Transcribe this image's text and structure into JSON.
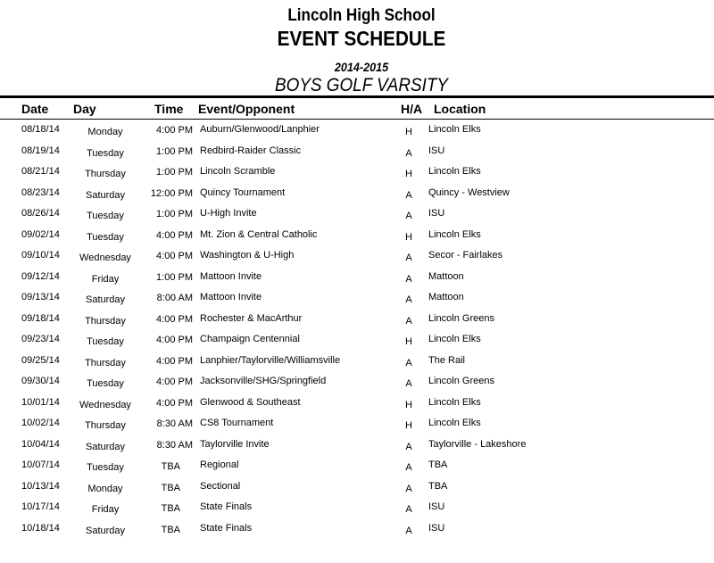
{
  "header": {
    "school": "Lincoln High School",
    "title": "EVENT SCHEDULE",
    "season": "2014-2015",
    "team": "BOYS GOLF VARSITY"
  },
  "columns": {
    "date": "Date",
    "day": "Day",
    "time": "Time",
    "event": "Event/Opponent",
    "ha": "H/A",
    "location": "Location"
  },
  "rows": [
    {
      "date": "08/18/14",
      "day": "Monday",
      "time": "4:00 PM",
      "event": "Auburn/Glenwood/Lanphier",
      "ha": "H",
      "location": "Lincoln Elks"
    },
    {
      "date": "08/19/14",
      "day": "Tuesday",
      "time": "1:00 PM",
      "event": "Redbird-Raider Classic",
      "ha": "A",
      "location": "ISU"
    },
    {
      "date": "08/21/14",
      "day": "Thursday",
      "time": "1:00 PM",
      "event": "Lincoln Scramble",
      "ha": "H",
      "location": "Lincoln Elks"
    },
    {
      "date": "08/23/14",
      "day": "Saturday",
      "time": "12:00 PM",
      "event": "Quincy Tournament",
      "ha": "A",
      "location": "Quincy - Westview"
    },
    {
      "date": "08/26/14",
      "day": "Tuesday",
      "time": "1:00 PM",
      "event": "U-High Invite",
      "ha": "A",
      "location": "ISU"
    },
    {
      "date": "09/02/14",
      "day": "Tuesday",
      "time": "4:00 PM",
      "event": "Mt. Zion & Central Catholic",
      "ha": "H",
      "location": "Lincoln Elks"
    },
    {
      "date": "09/10/14",
      "day": "Wednesday",
      "time": "4:00 PM",
      "event": "Washington & U-High",
      "ha": "A",
      "location": "Secor - Fairlakes"
    },
    {
      "date": "09/12/14",
      "day": "Friday",
      "time": "1:00 PM",
      "event": "Mattoon Invite",
      "ha": "A",
      "location": "Mattoon"
    },
    {
      "date": "09/13/14",
      "day": "Saturday",
      "time": "8:00 AM",
      "event": "Mattoon Invite",
      "ha": "A",
      "location": "Mattoon"
    },
    {
      "date": "09/18/14",
      "day": "Thursday",
      "time": "4:00 PM",
      "event": "Rochester & MacArthur",
      "ha": "A",
      "location": "Lincoln Greens"
    },
    {
      "date": "09/23/14",
      "day": "Tuesday",
      "time": "4:00 PM",
      "event": "Champaign Centennial",
      "ha": "H",
      "location": "Lincoln Elks"
    },
    {
      "date": "09/25/14",
      "day": "Thursday",
      "time": "4:00 PM",
      "event": "Lanphier/Taylorville/Williamsville",
      "ha": "A",
      "location": "The Rail"
    },
    {
      "date": "09/30/14",
      "day": "Tuesday",
      "time": "4:00 PM",
      "event": "Jacksonville/SHG/Springfield",
      "ha": "A",
      "location": "Lincoln Greens"
    },
    {
      "date": "10/01/14",
      "day": "Wednesday",
      "time": "4:00 PM",
      "event": "Glenwood & Southeast",
      "ha": "H",
      "location": "Lincoln Elks"
    },
    {
      "date": "10/02/14",
      "day": "Thursday",
      "time": "8:30 AM",
      "event": "CS8 Tournament",
      "ha": "H",
      "location": "Lincoln Elks"
    },
    {
      "date": "10/04/14",
      "day": "Saturday",
      "time": "8:30 AM",
      "event": "Taylorville Invite",
      "ha": "A",
      "location": "Taylorville - Lakeshore"
    },
    {
      "date": "10/07/14",
      "day": "Tuesday",
      "time": "TBA",
      "event": "Regional",
      "ha": "A",
      "location": "TBA"
    },
    {
      "date": "10/13/14",
      "day": "Monday",
      "time": "TBA",
      "event": "Sectional",
      "ha": "A",
      "location": "TBA"
    },
    {
      "date": "10/17/14",
      "day": "Friday",
      "time": "TBA",
      "event": "State Finals",
      "ha": "A",
      "location": "ISU"
    },
    {
      "date": "10/18/14",
      "day": "Saturday",
      "time": "TBA",
      "event": "State Finals",
      "ha": "A",
      "location": "ISU"
    }
  ]
}
